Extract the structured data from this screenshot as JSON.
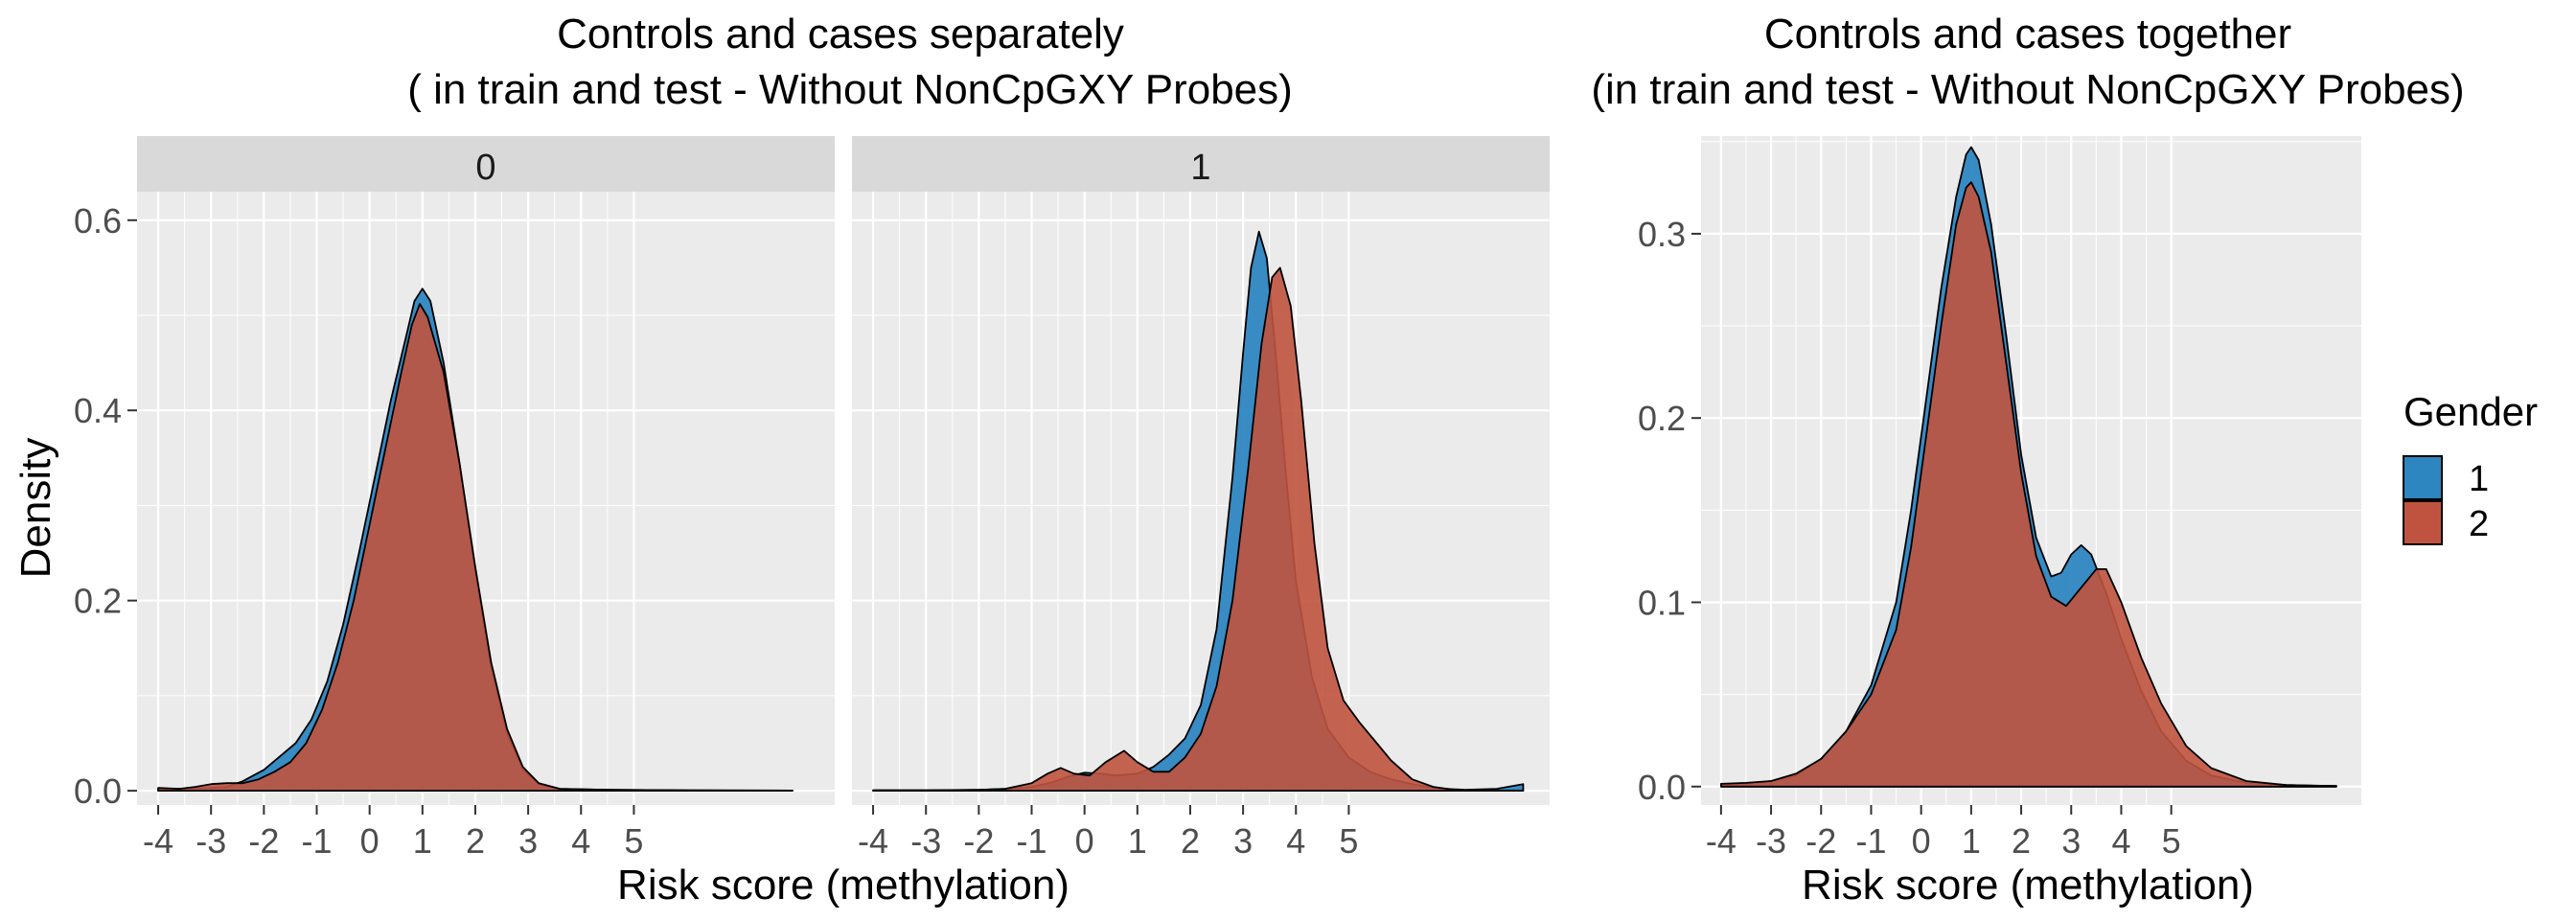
{
  "chart_data": [
    {
      "type": "area",
      "title_line1": "Controls and cases separately",
      "title_line2": "( in train and test - Without NonCpGXY Probes)",
      "xlabel": "Risk score (methylation)",
      "ylabel": "Density",
      "xlim": [
        -4.4,
        8.8
      ],
      "ylim": [
        -0.015,
        0.63
      ],
      "x_ticks": [
        -4,
        -3,
        -2,
        -1,
        0,
        1,
        2,
        3,
        4,
        5
      ],
      "y_ticks": [
        0.0,
        0.2,
        0.4,
        0.6
      ],
      "y_tick_labels": [
        "0.0",
        "0.2",
        "0.4",
        "0.6"
      ],
      "panels": [
        {
          "label": "0",
          "series": [
            {
              "name": "1",
              "points": [
                [
                  -4.0,
                  0.002
                ],
                [
                  -3.5,
                  0.002
                ],
                [
                  -3.0,
                  0.003
                ],
                [
                  -2.7,
                  0.004
                ],
                [
                  -2.4,
                  0.01
                ],
                [
                  -2.0,
                  0.022
                ],
                [
                  -1.7,
                  0.036
                ],
                [
                  -1.4,
                  0.05
                ],
                [
                  -1.1,
                  0.075
                ],
                [
                  -0.8,
                  0.115
                ],
                [
                  -0.5,
                  0.175
                ],
                [
                  -0.2,
                  0.25
                ],
                [
                  0.1,
                  0.33
                ],
                [
                  0.4,
                  0.41
                ],
                [
                  0.7,
                  0.48
                ],
                [
                  0.85,
                  0.515
                ],
                [
                  1.0,
                  0.528
                ],
                [
                  1.15,
                  0.515
                ],
                [
                  1.4,
                  0.45
                ],
                [
                  1.7,
                  0.345
                ],
                [
                  2.0,
                  0.23
                ],
                [
                  2.3,
                  0.13
                ],
                [
                  2.6,
                  0.06
                ],
                [
                  2.9,
                  0.022
                ],
                [
                  3.2,
                  0.007
                ],
                [
                  3.6,
                  0.002
                ],
                [
                  4.5,
                  0.001
                ],
                [
                  6.0,
                  0.0005
                ],
                [
                  7.0,
                  0.0003
                ],
                [
                  8.0,
                  0.0002
                ]
              ]
            },
            {
              "name": "2",
              "points": [
                [
                  -4.0,
                  0.003
                ],
                [
                  -3.6,
                  0.002
                ],
                [
                  -3.3,
                  0.004
                ],
                [
                  -3.0,
                  0.007
                ],
                [
                  -2.7,
                  0.008
                ],
                [
                  -2.4,
                  0.008
                ],
                [
                  -2.1,
                  0.012
                ],
                [
                  -1.8,
                  0.02
                ],
                [
                  -1.5,
                  0.03
                ],
                [
                  -1.2,
                  0.05
                ],
                [
                  -0.9,
                  0.085
                ],
                [
                  -0.6,
                  0.135
                ],
                [
                  -0.3,
                  0.2
                ],
                [
                  0.0,
                  0.28
                ],
                [
                  0.3,
                  0.36
                ],
                [
                  0.6,
                  0.44
                ],
                [
                  0.8,
                  0.49
                ],
                [
                  0.95,
                  0.512
                ],
                [
                  1.1,
                  0.498
                ],
                [
                  1.4,
                  0.44
                ],
                [
                  1.7,
                  0.345
                ],
                [
                  2.0,
                  0.235
                ],
                [
                  2.3,
                  0.135
                ],
                [
                  2.6,
                  0.065
                ],
                [
                  2.9,
                  0.025
                ],
                [
                  3.2,
                  0.008
                ],
                [
                  3.6,
                  0.002
                ],
                [
                  4.5,
                  0.001
                ],
                [
                  6.0,
                  0.0005
                ],
                [
                  8.0,
                  0.0002
                ]
              ]
            }
          ]
        },
        {
          "label": "1",
          "series": [
            {
              "name": "1",
              "points": [
                [
                  -4.0,
                  0.0005
                ],
                [
                  -3.0,
                  0.0005
                ],
                [
                  -2.0,
                  0.001
                ],
                [
                  -1.5,
                  0.002
                ],
                [
                  -1.0,
                  0.004
                ],
                [
                  -0.6,
                  0.009
                ],
                [
                  -0.3,
                  0.015
                ],
                [
                  0.0,
                  0.019
                ],
                [
                  0.3,
                  0.018
                ],
                [
                  0.6,
                  0.016
                ],
                [
                  1.0,
                  0.018
                ],
                [
                  1.3,
                  0.025
                ],
                [
                  1.6,
                  0.038
                ],
                [
                  1.9,
                  0.055
                ],
                [
                  2.2,
                  0.09
                ],
                [
                  2.5,
                  0.17
                ],
                [
                  2.8,
                  0.33
                ],
                [
                  3.0,
                  0.46
                ],
                [
                  3.15,
                  0.55
                ],
                [
                  3.3,
                  0.588
                ],
                [
                  3.45,
                  0.56
                ],
                [
                  3.6,
                  0.47
                ],
                [
                  3.8,
                  0.34
                ],
                [
                  4.0,
                  0.22
                ],
                [
                  4.3,
                  0.12
                ],
                [
                  4.6,
                  0.065
                ],
                [
                  5.0,
                  0.035
                ],
                [
                  5.4,
                  0.02
                ],
                [
                  5.8,
                  0.012
                ],
                [
                  6.2,
                  0.007
                ],
                [
                  6.5,
                  0.004
                ],
                [
                  6.8,
                  0.002
                ],
                [
                  7.2,
                  0.001
                ],
                [
                  7.8,
                  0.002
                ],
                [
                  8.3,
                  0.007
                ]
              ]
            },
            {
              "name": "2",
              "points": [
                [
                  -4.0,
                  0.0005
                ],
                [
                  -3.0,
                  0.0005
                ],
                [
                  -2.0,
                  0.0008
                ],
                [
                  -1.5,
                  0.002
                ],
                [
                  -1.0,
                  0.008
                ],
                [
                  -0.7,
                  0.018
                ],
                [
                  -0.45,
                  0.024
                ],
                [
                  -0.2,
                  0.018
                ],
                [
                  0.1,
                  0.016
                ],
                [
                  0.4,
                  0.03
                ],
                [
                  0.75,
                  0.042
                ],
                [
                  1.0,
                  0.03
                ],
                [
                  1.3,
                  0.02
                ],
                [
                  1.6,
                  0.02
                ],
                [
                  1.9,
                  0.035
                ],
                [
                  2.2,
                  0.06
                ],
                [
                  2.5,
                  0.11
                ],
                [
                  2.8,
                  0.2
                ],
                [
                  3.1,
                  0.34
                ],
                [
                  3.35,
                  0.47
                ],
                [
                  3.55,
                  0.54
                ],
                [
                  3.7,
                  0.55
                ],
                [
                  3.9,
                  0.51
                ],
                [
                  4.1,
                  0.41
                ],
                [
                  4.35,
                  0.26
                ],
                [
                  4.6,
                  0.15
                ],
                [
                  4.9,
                  0.095
                ],
                [
                  5.2,
                  0.072
                ],
                [
                  5.5,
                  0.052
                ],
                [
                  5.8,
                  0.032
                ],
                [
                  6.2,
                  0.012
                ],
                [
                  6.6,
                  0.004
                ],
                [
                  7.0,
                  0.001
                ],
                [
                  7.5,
                  0.0003
                ],
                [
                  8.3,
                  0.0001
                ]
              ]
            }
          ]
        }
      ]
    },
    {
      "type": "area",
      "title_line1": "Controls and cases together",
      "title_line2": "(in train and test - Without NonCpGXY Probes)",
      "xlabel": "Risk score (methylation)",
      "ylabel": "",
      "xlim": [
        -4.4,
        8.8
      ],
      "ylim": [
        -0.01,
        0.353
      ],
      "x_ticks": [
        -4,
        -3,
        -2,
        -1,
        0,
        1,
        2,
        3,
        4,
        5
      ],
      "y_ticks": [
        0.0,
        0.1,
        0.2,
        0.3
      ],
      "y_tick_labels": [
        "0.0",
        "0.1",
        "0.2",
        "0.3"
      ],
      "series": [
        {
          "name": "1",
          "points": [
            [
              -4.0,
              0.001
            ],
            [
              -3.5,
              0.0015
            ],
            [
              -3.0,
              0.003
            ],
            [
              -2.5,
              0.006
            ],
            [
              -2.0,
              0.015
            ],
            [
              -1.5,
              0.03
            ],
            [
              -1.0,
              0.055
            ],
            [
              -0.5,
              0.1
            ],
            [
              -0.2,
              0.15
            ],
            [
              0.1,
              0.21
            ],
            [
              0.4,
              0.27
            ],
            [
              0.7,
              0.32
            ],
            [
              0.9,
              0.343
            ],
            [
              1.0,
              0.347
            ],
            [
              1.15,
              0.34
            ],
            [
              1.4,
              0.305
            ],
            [
              1.7,
              0.245
            ],
            [
              2.0,
              0.18
            ],
            [
              2.3,
              0.135
            ],
            [
              2.6,
              0.114
            ],
            [
              2.8,
              0.116
            ],
            [
              3.0,
              0.126
            ],
            [
              3.2,
              0.131
            ],
            [
              3.4,
              0.126
            ],
            [
              3.7,
              0.105
            ],
            [
              4.0,
              0.08
            ],
            [
              4.4,
              0.052
            ],
            [
              4.8,
              0.03
            ],
            [
              5.3,
              0.014
            ],
            [
              5.8,
              0.006
            ],
            [
              6.5,
              0.002
            ],
            [
              7.3,
              0.0008
            ],
            [
              8.3,
              0.0003
            ]
          ]
        },
        {
          "name": "2",
          "points": [
            [
              -4.0,
              0.0015
            ],
            [
              -3.5,
              0.002
            ],
            [
              -3.0,
              0.003
            ],
            [
              -2.5,
              0.007
            ],
            [
              -2.0,
              0.015
            ],
            [
              -1.5,
              0.03
            ],
            [
              -1.0,
              0.05
            ],
            [
              -0.5,
              0.085
            ],
            [
              -0.2,
              0.13
            ],
            [
              0.1,
              0.19
            ],
            [
              0.4,
              0.25
            ],
            [
              0.7,
              0.305
            ],
            [
              0.9,
              0.325
            ],
            [
              1.0,
              0.328
            ],
            [
              1.15,
              0.32
            ],
            [
              1.4,
              0.29
            ],
            [
              1.7,
              0.23
            ],
            [
              2.0,
              0.17
            ],
            [
              2.3,
              0.125
            ],
            [
              2.6,
              0.103
            ],
            [
              2.9,
              0.098
            ],
            [
              3.2,
              0.108
            ],
            [
              3.5,
              0.118
            ],
            [
              3.7,
              0.118
            ],
            [
              4.0,
              0.1
            ],
            [
              4.4,
              0.07
            ],
            [
              4.8,
              0.045
            ],
            [
              5.3,
              0.022
            ],
            [
              5.8,
              0.01
            ],
            [
              6.5,
              0.003
            ],
            [
              7.3,
              0.0008
            ],
            [
              8.3,
              0.0003
            ]
          ]
        }
      ]
    }
  ],
  "legend": {
    "title": "Gender",
    "items": [
      {
        "label": "1",
        "color": "#2E86C1"
      },
      {
        "label": "2",
        "color": "#C0533F"
      }
    ]
  },
  "colors": {
    "series_1": "#2E86C1",
    "series_2": "#C0533F",
    "panel_bg": "#EBEBEB",
    "strip_bg": "#D9D9D9",
    "grid": "#FFFFFF",
    "outline": "#000000"
  }
}
